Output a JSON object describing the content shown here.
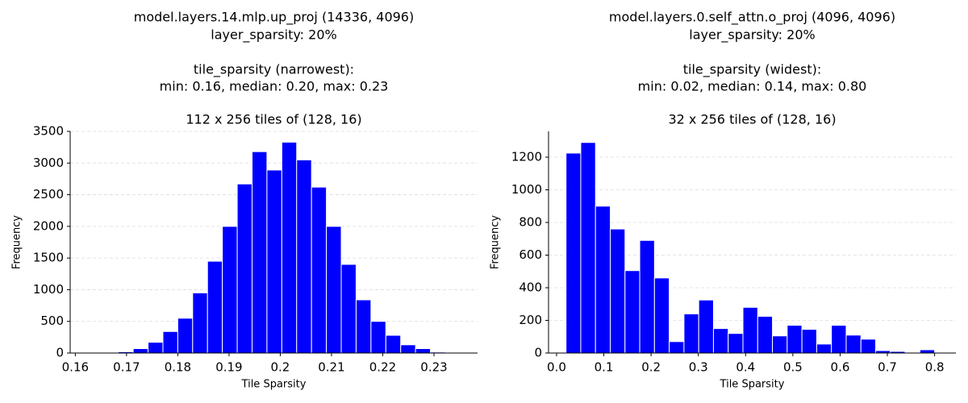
{
  "chart_data": [
    {
      "type": "histogram",
      "title": [
        "model.layers.14.mlp.up_proj (14336, 4096)",
        "layer_sparsity: 20%"
      ],
      "subtitle": [
        "tile_sparsity (narrowest):",
        "min: 0.16, median: 0.20, max: 0.23"
      ],
      "axes_title": "112 x 256 tiles of (128, 16)",
      "xlabel": "Tile Sparsity",
      "ylabel": "Frequency",
      "bins": [
        0.1655,
        0.1684,
        0.1713,
        0.1742,
        0.1771,
        0.18,
        0.1829,
        0.1858,
        0.1887,
        0.1916,
        0.1945,
        0.1974,
        0.2003,
        0.2032,
        0.2061,
        0.209,
        0.2119,
        0.2148,
        0.2177,
        0.2206,
        0.2235,
        0.2264,
        0.2293,
        0.2322
      ],
      "counts": [
        10,
        20,
        70,
        170,
        340,
        550,
        950,
        1450,
        2000,
        2670,
        3180,
        2890,
        3330,
        3050,
        2620,
        2000,
        1400,
        840,
        500,
        280,
        130,
        70,
        15
      ],
      "color": "#0000ff",
      "xlim": [
        0.159,
        0.2385
      ],
      "xticks": [
        0.16,
        0.17,
        0.18,
        0.19,
        0.2,
        0.21,
        0.22,
        0.23
      ],
      "ylim": [
        0,
        3500
      ],
      "yticks": [
        0,
        500,
        1000,
        1500,
        2000,
        2500,
        3000,
        3500
      ],
      "grid": true
    },
    {
      "type": "histogram",
      "title": [
        "model.layers.0.self_attn.o_proj (4096, 4096)",
        "layer_sparsity: 20%"
      ],
      "subtitle": [
        "tile_sparsity (widest):",
        "min: 0.02, median: 0.14, max: 0.80"
      ],
      "axes_title": "32 x 256 tiles of (128, 16)",
      "xlabel": "Tile Sparsity",
      "ylabel": "Frequency",
      "bins": [
        0.02,
        0.0512,
        0.0824,
        0.1136,
        0.1448,
        0.176,
        0.2072,
        0.2384,
        0.2696,
        0.3008,
        0.332,
        0.3632,
        0.3944,
        0.4256,
        0.4568,
        0.488,
        0.5192,
        0.5504,
        0.5816,
        0.6128,
        0.644,
        0.6752,
        0.7064,
        0.7376,
        0.7688,
        0.8
      ],
      "counts": [
        1225,
        1290,
        900,
        760,
        505,
        690,
        460,
        70,
        240,
        325,
        150,
        120,
        280,
        225,
        105,
        170,
        145,
        55,
        170,
        110,
        85,
        15,
        10,
        5,
        20
      ],
      "color": "#0000ff",
      "xlim": [
        -0.017,
        0.845
      ],
      "xticks": [
        {
          "value": 0,
          "label": "0.0"
        },
        0.1,
        0.2,
        0.3,
        0.4,
        0.5,
        0.6,
        0.7,
        0.8
      ],
      "ylim": [
        0,
        1358
      ],
      "yticks": [
        0,
        200,
        400,
        600,
        800,
        1000,
        1200
      ],
      "grid": true
    }
  ]
}
